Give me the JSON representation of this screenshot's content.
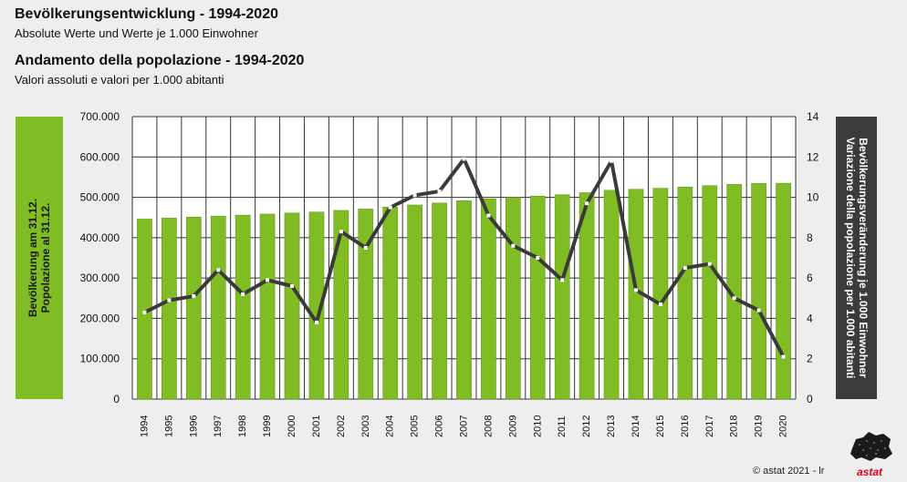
{
  "header": {
    "title_de": "Bevölkerungsentwicklung - 1994-2020",
    "subtitle_de": "Absolute Werte und Werte je 1.000 Einwohner",
    "title_it": "Andamento della popolazione - 1994-2020",
    "subtitle_it": "Valori assoluti e valori per 1.000 abitanti"
  },
  "left_axis_title": {
    "line1": "Bevölkerung am 31.12.",
    "line2": "Popolazione al 31.12."
  },
  "right_axis_title": {
    "line1": "Bevölkerungsveränderung je 1.000 Einwohner",
    "line2": "Variazione della popolazione per 1.000 abitanti"
  },
  "footer": {
    "copyright": "© astat 2021 - lr",
    "brand": "astat"
  },
  "colors": {
    "bar": "#80bd24",
    "bar_edge": "#5a8f14",
    "line": "#3a3a3a",
    "marker": "#ffffff",
    "grid": "#333333"
  },
  "chart_data": {
    "type": "bar",
    "categories": [
      "1994",
      "1995",
      "1996",
      "1997",
      "1998",
      "1999",
      "2000",
      "2001",
      "2002",
      "2003",
      "2004",
      "2005",
      "2006",
      "2007",
      "2008",
      "2009",
      "2010",
      "2011",
      "2012",
      "2013",
      "2014",
      "2015",
      "2016",
      "2017",
      "2018",
      "2019",
      "2020"
    ],
    "series": [
      {
        "type": "bar",
        "axis": "left",
        "values": [
          446000,
          448500,
          451000,
          453500,
          456000,
          458500,
          461000,
          463500,
          467500,
          471000,
          476000,
          481000,
          486000,
          491500,
          496000,
          499500,
          503000,
          506500,
          511500,
          517500,
          520000,
          522500,
          525500,
          529000,
          532000,
          534500,
          535000
        ]
      },
      {
        "type": "line",
        "axis": "right",
        "values": [
          4.3,
          4.9,
          5.1,
          6.4,
          5.2,
          5.9,
          5.6,
          3.8,
          8.3,
          7.5,
          9.5,
          10.1,
          10.3,
          11.9,
          9.1,
          7.6,
          7.0,
          5.9,
          9.7,
          11.8,
          5.4,
          4.7,
          6.5,
          6.7,
          5.0,
          4.4,
          2.1
        ]
      }
    ],
    "yleft_lim": [
      0,
      700000
    ],
    "yleft_ticks": [
      "0",
      "100.000",
      "200.000",
      "300.000",
      "400.000",
      "500.000",
      "600.000",
      "700.000"
    ],
    "yright_lim": [
      0,
      14
    ],
    "yright_ticks": [
      "0",
      "2",
      "4",
      "6",
      "8",
      "10",
      "12",
      "14"
    ],
    "grid": true,
    "legend": "none"
  }
}
